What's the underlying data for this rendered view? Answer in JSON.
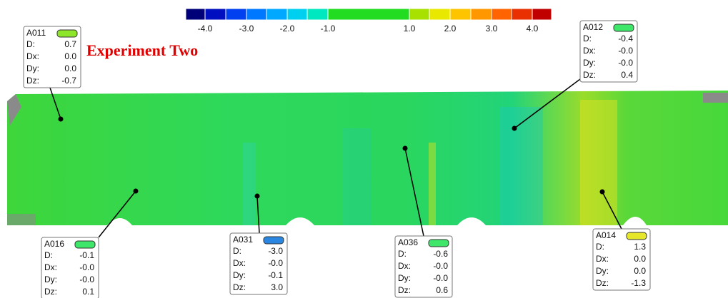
{
  "title": "Experiment Two",
  "colorbar": {
    "labels": [
      "-4.0",
      "-3.0",
      "-2.0",
      "-1.0",
      "1.0",
      "2.0",
      "3.0",
      "4.0"
    ]
  },
  "annotations": [
    {
      "id": "A011",
      "color": "#8ee62a",
      "rows": [
        {
          "label": "D:",
          "value": "0.7"
        },
        {
          "label": "Dx:",
          "value": "0.0"
        },
        {
          "label": "Dy:",
          "value": "0.0"
        },
        {
          "label": "Dz:",
          "value": "-0.7"
        }
      ]
    },
    {
      "id": "A012",
      "color": "#3ee66a",
      "rows": [
        {
          "label": "D:",
          "value": "-0.4"
        },
        {
          "label": "Dx:",
          "value": "-0.0"
        },
        {
          "label": "Dy:",
          "value": "-0.0"
        },
        {
          "label": "Dz:",
          "value": "0.4"
        }
      ]
    },
    {
      "id": "A016",
      "color": "#3ee66a",
      "rows": [
        {
          "label": "D:",
          "value": "-0.1"
        },
        {
          "label": "Dx:",
          "value": "-0.0"
        },
        {
          "label": "Dy:",
          "value": "-0.0"
        },
        {
          "label": "Dz:",
          "value": "0.1"
        }
      ]
    },
    {
      "id": "A031",
      "color": "#2a86e0",
      "rows": [
        {
          "label": "D:",
          "value": "-3.0"
        },
        {
          "label": "Dx:",
          "value": "-0.0"
        },
        {
          "label": "Dy:",
          "value": "-0.1"
        },
        {
          "label": "Dz:",
          "value": "3.0"
        }
      ]
    },
    {
      "id": "A036",
      "color": "#3ee66a",
      "rows": [
        {
          "label": "D:",
          "value": "-0.6"
        },
        {
          "label": "Dx:",
          "value": "-0.0"
        },
        {
          "label": "Dy:",
          "value": "-0.0"
        },
        {
          "label": "Dz:",
          "value": "0.6"
        }
      ]
    },
    {
      "id": "A014",
      "color": "#e6e62a",
      "rows": [
        {
          "label": "D:",
          "value": "1.3"
        },
        {
          "label": "Dx:",
          "value": "0.0"
        },
        {
          "label": "Dy:",
          "value": "0.0"
        },
        {
          "label": "Dz:",
          "value": "-1.3"
        }
      ]
    }
  ]
}
